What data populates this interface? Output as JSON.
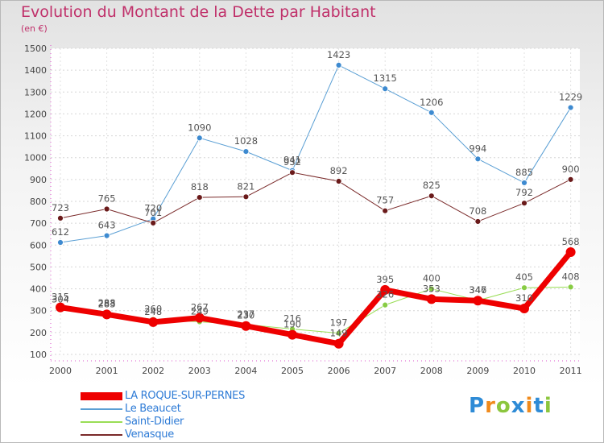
{
  "header": {
    "title": "Evolution du Montant de la Dette par Habitant",
    "unit": "(en €)"
  },
  "logo": {
    "text": "Proxiti",
    "colors": [
      "#2e8bd6",
      "#f08a1c",
      "#8cc63e",
      "#2e8bd6",
      "#f08a1c",
      "#2e8bd6",
      "#8cc63e"
    ]
  },
  "chart_data": {
    "type": "line",
    "title": "Evolution du Montant de la Dette par Habitant",
    "ylabel": "(en €)",
    "x": [
      "2000",
      "2001",
      "2002",
      "2003",
      "2004",
      "2005",
      "2006",
      "2007",
      "2008",
      "2009",
      "2010",
      "2011"
    ],
    "yticks": [
      "100",
      "200",
      "300",
      "400",
      "500",
      "600",
      "700",
      "800",
      "900",
      "1000",
      "1100",
      "1200",
      "1300",
      "1400",
      "1500"
    ],
    "ylim": [
      100,
      1500
    ],
    "grid": true,
    "legend_position": "bottom-left",
    "series": [
      {
        "name": "LA ROQUE-SUR-PERNES",
        "color": "#ee0000",
        "marker": "#ee0000",
        "width": 7,
        "values": [
          315,
          283,
          248,
          267,
          230,
          190,
          149,
          395,
          353,
          346,
          310,
          568
        ],
        "labels": [
          "315",
          "283",
          "248",
          "267",
          "230",
          "190",
          "149",
          "395",
          "353",
          "346",
          "310",
          "568"
        ]
      },
      {
        "name": "Le Beaucet",
        "color": "#5a9fd4",
        "marker": "#3d8ad0",
        "width": 1,
        "values": [
          612,
          643,
          720,
          1090,
          1028,
          941,
          1423,
          1315,
          1206,
          994,
          885,
          1229
        ],
        "labels": [
          "612",
          "643",
          "720",
          "1090",
          "1028",
          "941",
          "1423",
          "1315",
          "1206",
          "994",
          "885",
          "1229"
        ]
      },
      {
        "name": "Saint-Didier",
        "color": "#99dd55",
        "marker": "#88cc44",
        "width": 1,
        "values": [
          304,
          288,
          260,
          249,
          237,
          216,
          197,
          326,
          400,
          347,
          405,
          408
        ],
        "labels": [
          "304",
          "288",
          "260",
          "249",
          "237",
          "216",
          "197",
          "326",
          "400",
          "347",
          "405",
          "408"
        ]
      },
      {
        "name": "Venasque",
        "color": "#7a2a2a",
        "marker": "#6a1a1a",
        "width": 1,
        "values": [
          723,
          765,
          701,
          818,
          821,
          932,
          892,
          757,
          825,
          708,
          792,
          900
        ],
        "labels": [
          "723",
          "765",
          "701",
          "818",
          "821",
          "932",
          "892",
          "757",
          "825",
          "708",
          "792",
          "900"
        ]
      }
    ]
  }
}
